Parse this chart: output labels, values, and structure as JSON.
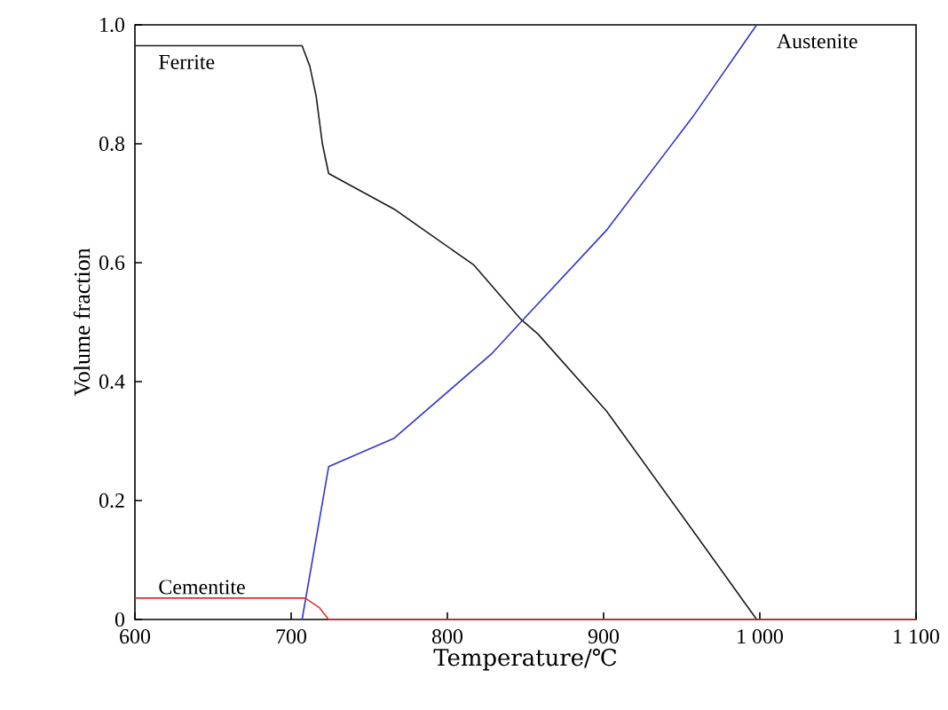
{
  "chart_data": {
    "type": "line",
    "xlabel": "Temperature/℃",
    "ylabel": "Volume fraction",
    "xlim": [
      600,
      1100
    ],
    "ylim": [
      0,
      1.0
    ],
    "xticks": [
      {
        "value": 600,
        "label": "600"
      },
      {
        "value": 700,
        "label": "700"
      },
      {
        "value": 800,
        "label": "800"
      },
      {
        "value": 900,
        "label": "900"
      },
      {
        "value": 1000,
        "label": "1 000"
      },
      {
        "value": 1100,
        "label": "1 100"
      }
    ],
    "yticks": [
      0,
      0.2,
      0.4,
      0.6,
      0.8,
      {
        "value": 1.0,
        "label": "1.0"
      }
    ],
    "grid": false,
    "legend": false,
    "marker": "none",
    "line_style": "solid",
    "series": [
      {
        "name": "Ferrite",
        "color": "#1a1a1a",
        "x": [
          600,
          707,
          712,
          716,
          720,
          724,
          766,
          817,
          847,
          858,
          902,
          957,
          998,
          1000
        ],
        "values": [
          0.965,
          0.965,
          0.93,
          0.88,
          0.8,
          0.75,
          0.69,
          0.596,
          0.505,
          0.48,
          0.35,
          0.15,
          0.0,
          0.0
        ]
      },
      {
        "name": "Austenite",
        "color": "#3333cc",
        "x": [
          707,
          724,
          766,
          828,
          847,
          902,
          957,
          998
        ],
        "values": [
          0.0,
          0.257,
          0.305,
          0.446,
          0.5,
          0.655,
          0.845,
          1.0
        ]
      },
      {
        "name": "Cementite",
        "color": "#dd3333",
        "x": [
          600,
          709,
          718,
          724,
          1100
        ],
        "values": [
          0.036,
          0.036,
          0.02,
          0.0,
          0.0
        ]
      }
    ]
  }
}
